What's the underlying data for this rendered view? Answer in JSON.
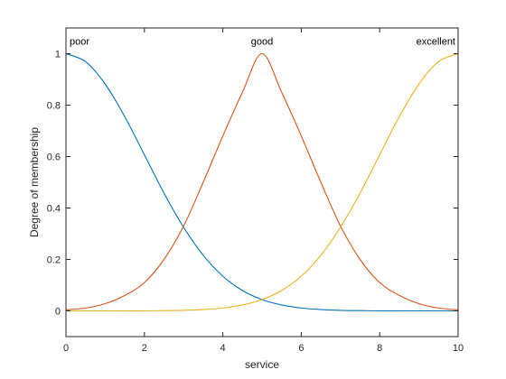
{
  "chart_data": {
    "type": "line",
    "xlabel": "service",
    "ylabel": "Degree of membership",
    "xlim": [
      0,
      10
    ],
    "ylim": [
      -0.1,
      1.1
    ],
    "x_ticks": [
      0,
      2,
      4,
      6,
      8,
      10
    ],
    "y_ticks": [
      0,
      0.2,
      0.4,
      0.6,
      0.8,
      1
    ],
    "x_tick_labels": [
      "0",
      "2",
      "4",
      "6",
      "8",
      "10"
    ],
    "y_tick_labels": [
      "0",
      "0.2",
      "0.4",
      "0.6",
      "0.8",
      "1"
    ],
    "grid": false,
    "series": [
      {
        "name": "poor",
        "color": "#0072BD",
        "x": [
          0,
          0.5,
          1,
          1.5,
          2,
          2.5,
          3,
          3.5,
          4,
          4.5,
          5,
          5.5,
          6,
          6.5,
          7,
          7.5,
          8,
          8.5,
          9,
          9.5,
          10
        ],
        "y": [
          1,
          0.969,
          0.882,
          0.755,
          0.607,
          0.458,
          0.325,
          0.216,
          0.135,
          0.079,
          0.044,
          0.023,
          0.011,
          0.005,
          0.002,
          0.001,
          0,
          0,
          0,
          0,
          0
        ]
      },
      {
        "name": "good",
        "color": "#D95319",
        "x": [
          0,
          0.5,
          1,
          1.5,
          2,
          2.5,
          3,
          3.5,
          4,
          4.5,
          5,
          5.5,
          6,
          6.5,
          7,
          7.5,
          8,
          8.5,
          9,
          9.5,
          10
        ],
        "y": [
          0.004,
          0.011,
          0.028,
          0.06,
          0.11,
          0.2,
          0.33,
          0.5,
          0.68,
          0.85,
          1,
          0.85,
          0.68,
          0.5,
          0.33,
          0.2,
          0.11,
          0.06,
          0.028,
          0.011,
          0.004
        ]
      },
      {
        "name": "excellent",
        "color": "#EDB120",
        "x": [
          0,
          0.5,
          1,
          1.5,
          2,
          2.5,
          3,
          3.5,
          4,
          4.5,
          5,
          5.5,
          6,
          6.5,
          7,
          7.5,
          8,
          8.5,
          9,
          9.5,
          10
        ],
        "y": [
          0,
          0,
          0,
          0,
          0,
          0.001,
          0.002,
          0.005,
          0.011,
          0.023,
          0.044,
          0.079,
          0.135,
          0.216,
          0.325,
          0.458,
          0.607,
          0.755,
          0.882,
          0.969,
          1
        ]
      }
    ]
  }
}
